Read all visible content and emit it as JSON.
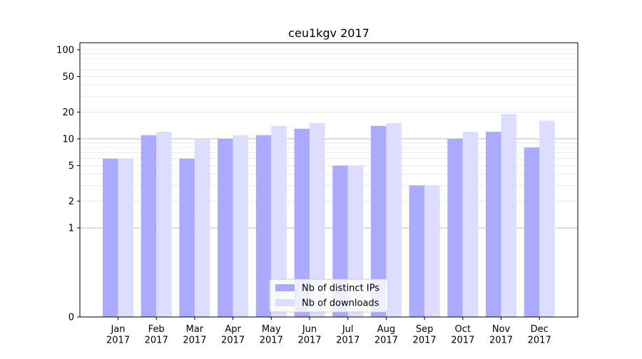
{
  "chart_data": {
    "type": "bar",
    "title": "ceu1kgv 2017",
    "categories": [
      "Jan\n2017",
      "Feb\n2017",
      "Mar\n2017",
      "Apr\n2017",
      "May\n2017",
      "Jun\n2017",
      "Jul\n2017",
      "Aug\n2017",
      "Sep\n2017",
      "Oct\n2017",
      "Nov\n2017",
      "Dec\n2017"
    ],
    "series": [
      {
        "name": "Nb of distinct IPs",
        "values": [
          6,
          11,
          6,
          10,
          11,
          13,
          5,
          14,
          3,
          10,
          12,
          8
        ],
        "color": "#aaaaff"
      },
      {
        "name": "Nb of downloads",
        "values": [
          6,
          12,
          10,
          11,
          14,
          15,
          5,
          15,
          3,
          12,
          19,
          16
        ],
        "color": "#ddddff"
      }
    ],
    "y_scale": "symlog",
    "y_ticks": [
      0,
      1,
      2,
      5,
      10,
      20,
      50,
      100
    ],
    "ylim": [
      0,
      120
    ],
    "xlabel": "",
    "ylabel": "",
    "legend": "bottom-center",
    "grid": true
  }
}
